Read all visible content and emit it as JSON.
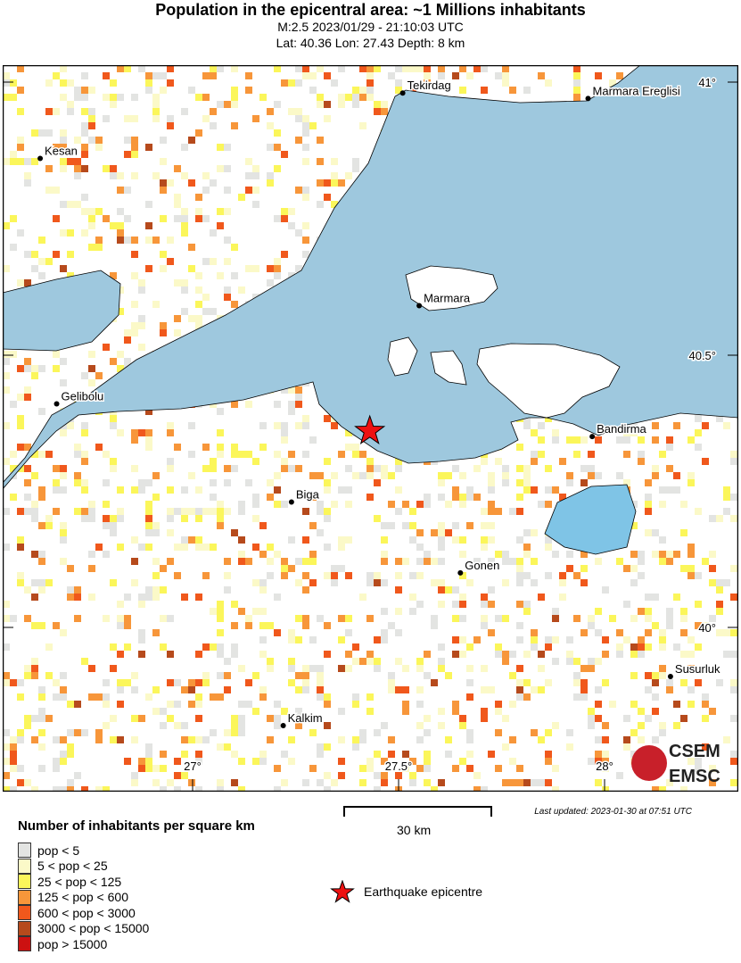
{
  "header": {
    "title": "Population in the epicentral area: ~1 Millions inhabitants",
    "line1": "M:2.5 2023/01/29 - 21:10:03 UTC",
    "line2": "Lat: 40.36 Lon: 27.43 Depth: 8 km"
  },
  "map": {
    "epicentre": {
      "lat": 40.36,
      "lon": 27.43
    },
    "cities": [
      {
        "name": "Tekirdag",
        "lat": 40.98,
        "lon": 27.51
      },
      {
        "name": "Marmara Ereglisi",
        "lat": 40.97,
        "lon": 27.96
      },
      {
        "name": "Kesan",
        "lat": 40.86,
        "lon": 26.63
      },
      {
        "name": "Marmara",
        "lat": 40.59,
        "lon": 27.55
      },
      {
        "name": "Gelibolu",
        "lat": 40.41,
        "lon": 26.67
      },
      {
        "name": "Bandirma",
        "lat": 40.35,
        "lon": 27.97
      },
      {
        "name": "Biga",
        "lat": 40.23,
        "lon": 27.24
      },
      {
        "name": "Gonen",
        "lat": 40.1,
        "lon": 27.65
      },
      {
        "name": "Susurluk",
        "lat": 39.91,
        "lon": 28.16
      },
      {
        "name": "Kalkim",
        "lat": 39.82,
        "lon": 27.22
      }
    ],
    "lon_ticks": [
      "27°",
      "27.5°",
      "28°"
    ],
    "lat_ticks": [
      "41°",
      "40.5°",
      "40°"
    ],
    "colors": {
      "sea": "#9ec8de",
      "lake": "#7fc4e6",
      "epicentre": "#ee1111"
    },
    "logo": {
      "top": "CSEM",
      "bottom": "EMSC"
    }
  },
  "scale": {
    "label": "30 km"
  },
  "updated": "Last updated: 2023-01-30 at 07:51 UTC",
  "legend": {
    "title": "Number of inhabitants per square km",
    "items": [
      {
        "label": "pop < 5",
        "color": "#e3e4e2"
      },
      {
        "label": "5 < pop < 25",
        "color": "#fbf9c8"
      },
      {
        "label": "25 < pop < 125",
        "color": "#fbf65a"
      },
      {
        "label": "125 < pop < 600",
        "color": "#f7963a"
      },
      {
        "label": "600 < pop < 3000",
        "color": "#f0581c"
      },
      {
        "label": "3000 < pop < 15000",
        "color": "#b64a1c"
      },
      {
        "label": "pop > 15000",
        "color": "#cc1111"
      }
    ],
    "epicentre_label": "Earthquake epicentre"
  }
}
